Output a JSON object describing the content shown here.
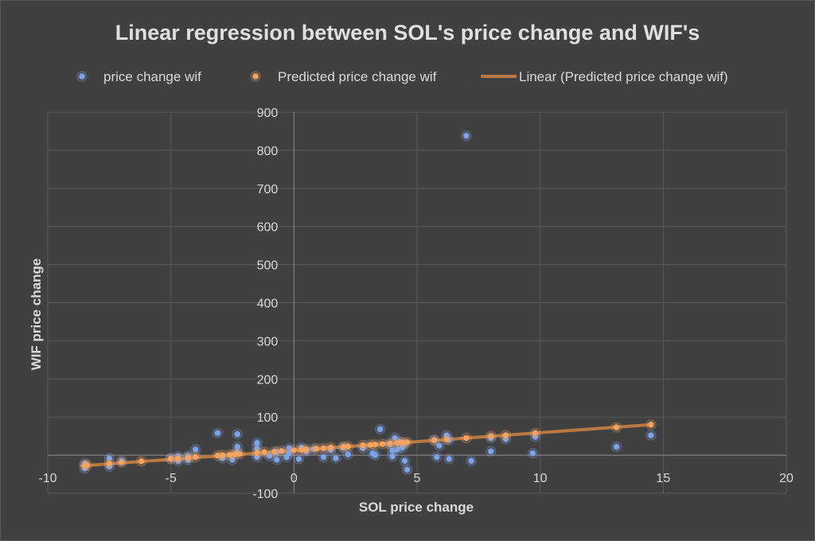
{
  "chart_data": {
    "type": "scatter",
    "title": "Linear regression between SOL's price change and WIF's",
    "xlabel": "SOL price change",
    "ylabel": "WIF price change",
    "xlim": [
      -10,
      20
    ],
    "ylim": [
      -100,
      900
    ],
    "x_ticks": [
      -10,
      -5,
      0,
      5,
      10,
      15,
      20
    ],
    "y_ticks": [
      -100,
      100,
      200,
      300,
      400,
      500,
      600,
      700,
      800,
      900
    ],
    "x_tick_labels": [
      "-10",
      "-5",
      "0",
      "5",
      "10",
      "15",
      "20"
    ],
    "y_tick_labels": [
      "-100",
      "100",
      "200",
      "300",
      "400",
      "500",
      "600",
      "700",
      "800",
      "900"
    ],
    "grid": true,
    "legend_position": "top",
    "series": [
      {
        "name": "price change wif",
        "kind": "points",
        "color": "#7ea3e6",
        "points": [
          [
            -8.5,
            -22
          ],
          [
            -8.5,
            -35
          ],
          [
            -7.5,
            -8
          ],
          [
            -7.5,
            -30
          ],
          [
            -7,
            -15
          ],
          [
            -5,
            -8
          ],
          [
            -4.7,
            -3
          ],
          [
            -4.7,
            -15
          ],
          [
            -4.3,
            -2
          ],
          [
            -4.3,
            -13
          ],
          [
            -4,
            15
          ],
          [
            -3.1,
            58
          ],
          [
            -2.9,
            -8
          ],
          [
            -2.5,
            -12
          ],
          [
            -2.3,
            55
          ],
          [
            -2.3,
            22
          ],
          [
            -2.3,
            8
          ],
          [
            -1.5,
            32
          ],
          [
            -1.5,
            18
          ],
          [
            -1.5,
            -5
          ],
          [
            -1,
            -2
          ],
          [
            -0.7,
            8
          ],
          [
            -0.7,
            -12
          ],
          [
            -0.3,
            -5
          ],
          [
            -0.2,
            18
          ],
          [
            -0.2,
            5
          ],
          [
            0.2,
            -10
          ],
          [
            0.3,
            20
          ],
          [
            0.5,
            10
          ],
          [
            0.8,
            16
          ],
          [
            1.2,
            -5
          ],
          [
            1.5,
            14
          ],
          [
            1.7,
            -8
          ],
          [
            2,
            20
          ],
          [
            2.2,
            2
          ],
          [
            2.8,
            18
          ],
          [
            3.2,
            5
          ],
          [
            3.3,
            0
          ],
          [
            3.5,
            68
          ],
          [
            3.9,
            28
          ],
          [
            4,
            12
          ],
          [
            4,
            -3
          ],
          [
            4.1,
            45
          ],
          [
            4.2,
            15
          ],
          [
            4.3,
            35
          ],
          [
            4.4,
            20
          ],
          [
            4.5,
            30
          ],
          [
            4.5,
            -15
          ],
          [
            4.6,
            -38
          ],
          [
            5.7,
            40
          ],
          [
            5.8,
            -5
          ],
          [
            5.9,
            25
          ],
          [
            6.2,
            52
          ],
          [
            6.3,
            40
          ],
          [
            6.3,
            -10
          ],
          [
            7,
            838
          ],
          [
            7.2,
            -15
          ],
          [
            8,
            45
          ],
          [
            8,
            10
          ],
          [
            8.6,
            42
          ],
          [
            9.7,
            5
          ],
          [
            9.8,
            48
          ],
          [
            13.1,
            22
          ],
          [
            14.5,
            52
          ]
        ]
      },
      {
        "name": "Predicted price change wif",
        "kind": "points",
        "color": "#f4a460",
        "points": [
          [
            -8.5,
            -27
          ],
          [
            -8.4,
            -26
          ],
          [
            -7.5,
            -22
          ],
          [
            -7,
            -19
          ],
          [
            -6.2,
            -16
          ],
          [
            -5,
            -10
          ],
          [
            -4.7,
            -9
          ],
          [
            -4.3,
            -7
          ],
          [
            -4,
            -5
          ],
          [
            -3.1,
            -1
          ],
          [
            -2.9,
            0
          ],
          [
            -2.6,
            1
          ],
          [
            -2.4,
            2
          ],
          [
            -2.2,
            3
          ],
          [
            -1.5,
            6
          ],
          [
            -1.2,
            8
          ],
          [
            -0.8,
            9
          ],
          [
            -0.5,
            11
          ],
          [
            0,
            13
          ],
          [
            0.3,
            14
          ],
          [
            0.5,
            15
          ],
          [
            0.9,
            17
          ],
          [
            1.2,
            18
          ],
          [
            1.5,
            20
          ],
          [
            2,
            22
          ],
          [
            2.2,
            23
          ],
          [
            2.8,
            26
          ],
          [
            3.1,
            27
          ],
          [
            3.3,
            28
          ],
          [
            3.6,
            29
          ],
          [
            3.9,
            31
          ],
          [
            4.2,
            32
          ],
          [
            4.4,
            33
          ],
          [
            4.6,
            34
          ],
          [
            5.7,
            39
          ],
          [
            6.2,
            41
          ],
          [
            7,
            45
          ],
          [
            8,
            50
          ],
          [
            8.6,
            52
          ],
          [
            9.8,
            58
          ],
          [
            13.1,
            73
          ],
          [
            14.5,
            80
          ]
        ]
      },
      {
        "name": "Linear (Predicted price change wif)",
        "kind": "line",
        "color": "#b87840",
        "points": [
          [
            -8.6,
            -28
          ],
          [
            14.5,
            80
          ]
        ]
      }
    ]
  }
}
